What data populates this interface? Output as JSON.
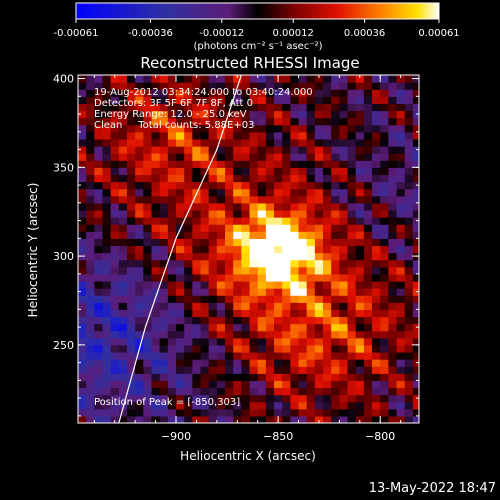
{
  "chart_data": {
    "type": "heatmap",
    "title": "Reconstructed RHESSI Image",
    "xlabel": "Heliocentric X (arcsec)",
    "ylabel": "Heliocentric Y (arcsec)",
    "xlim": [
      -948,
      -781
    ],
    "ylim": [
      206,
      402
    ],
    "x_ticks": [
      -900,
      -850,
      -800
    ],
    "y_ticks": [
      250,
      300,
      350,
      400
    ],
    "colorbar": {
      "range": [
        -0.00061,
        0.00061
      ],
      "ticks": [
        -0.00061,
        -0.00036,
        -0.00012,
        0.00012,
        0.00036,
        0.00061
      ],
      "tick_labels": [
        "-0.00061",
        "-0.00036",
        "-0.00012",
        "0.00012",
        "0.00036",
        "0.00061"
      ],
      "unit_label": "(photons cm⁻² s⁻¹ asec⁻²)",
      "colormap": "rainbow-black-red-yellow"
    },
    "annotations": [
      "19-Aug-2012 03:34:24.000 to 03:40:24.000",
      "Detectors: 3F 5F 6F 7F 8F, Att 0",
      "Energy Range: 12.0 - 25.0 keV",
      "Clean     Total counts: 5.88E+03"
    ],
    "peak": {
      "x": -850,
      "y": 303,
      "label": "Position of Peak = [-850,303]"
    },
    "peak_value": 0.00061,
    "min_value": -0.00061,
    "grid": false,
    "limb_curve": [
      [
        -928,
        206
      ],
      [
        -915,
        260
      ],
      [
        -900,
        310
      ],
      [
        -880,
        360
      ],
      [
        -868,
        402
      ]
    ]
  },
  "footer": {
    "timestamp": "13-May-2022 18:47"
  }
}
